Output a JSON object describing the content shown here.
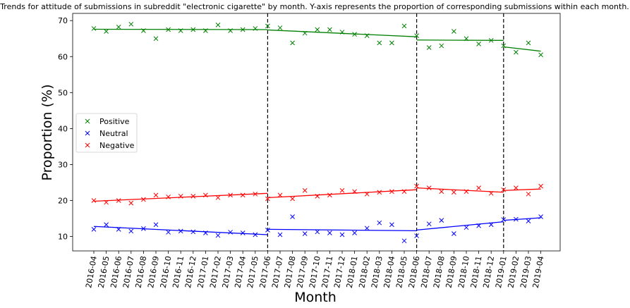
{
  "chart_data": {
    "type": "scatter",
    "title": "Trends for attitude of submissions in subreddit \"electronic cigarette\" by month. Y-axis represents the proportion of corresponding submissions within each month.",
    "xlabel": "Month",
    "ylabel": "Proportion (%)",
    "ylim": [
      6,
      72
    ],
    "yticks": [
      10,
      20,
      30,
      40,
      50,
      60,
      70
    ],
    "categories": [
      "2016-04",
      "2016-05",
      "2016-06",
      "2016-07",
      "2016-08",
      "2016-09",
      "2016-10",
      "2016-11",
      "2016-12",
      "2017-01",
      "2017-02",
      "2017-03",
      "2017-04",
      "2017-05",
      "2017-06",
      "2017-07",
      "2017-08",
      "2017-09",
      "2017-10",
      "2017-11",
      "2017-12",
      "2018-01",
      "2018-02",
      "2018-03",
      "2018-04",
      "2018-05",
      "2018-06",
      "2018-07",
      "2018-08",
      "2018-09",
      "2018-10",
      "2018-11",
      "2018-12",
      "2019-01",
      "2019-02",
      "2019-03",
      "2019-04"
    ],
    "legend_position": "center-left",
    "grid": false,
    "breakpoints": [
      "2017-06",
      "2018-06",
      "2019-01"
    ],
    "series": [
      {
        "name": "Positive",
        "color": "#008000",
        "values": [
          67.8,
          67.0,
          68.2,
          69.0,
          67.2,
          65.0,
          67.5,
          67.2,
          67.5,
          67.2,
          68.8,
          67.2,
          67.5,
          67.8,
          68.5,
          68.0,
          63.8,
          66.5,
          67.5,
          67.5,
          66.8,
          66.2,
          65.8,
          63.8,
          63.8,
          68.5,
          65.8,
          62.5,
          63.0,
          67.0,
          65.0,
          63.5,
          64.5,
          63.0,
          61.2,
          63.8,
          60.5
        ],
        "trend": [
          {
            "start": "2016-04",
            "end": "2017-06",
            "from": 67.6,
            "to": 67.5
          },
          {
            "start": "2017-06",
            "end": "2018-06",
            "from": 67.4,
            "to": 65.5
          },
          {
            "start": "2018-06",
            "end": "2019-01",
            "from": 64.6,
            "to": 64.5
          },
          {
            "start": "2019-01",
            "end": "2019-04",
            "from": 62.7,
            "to": 61.5
          }
        ]
      },
      {
        "name": "Neutral",
        "color": "#0000ff",
        "values": [
          12.0,
          13.3,
          12.0,
          11.5,
          12.2,
          13.3,
          11.2,
          11.5,
          11.3,
          11.0,
          10.3,
          11.2,
          11.0,
          10.5,
          11.8,
          10.5,
          15.5,
          10.8,
          11.3,
          11.0,
          10.5,
          11.0,
          12.3,
          13.8,
          13.3,
          8.8,
          10.2,
          13.5,
          14.5,
          10.8,
          12.5,
          13.0,
          13.3,
          14.7,
          14.8,
          14.3,
          15.5
        ],
        "trend": [
          {
            "start": "2016-04",
            "end": "2017-06",
            "from": 12.8,
            "to": 10.5
          },
          {
            "start": "2017-06",
            "end": "2018-06",
            "from": 12.0,
            "to": 11.6
          },
          {
            "start": "2018-06",
            "end": "2019-01",
            "from": 11.8,
            "to": 14.1
          },
          {
            "start": "2019-01",
            "end": "2019-04",
            "from": 14.5,
            "to": 15.2
          }
        ]
      },
      {
        "name": "Negative",
        "color": "#ff0000",
        "values": [
          20.0,
          19.5,
          20.0,
          19.3,
          20.3,
          21.5,
          21.0,
          21.2,
          21.2,
          21.5,
          20.8,
          21.5,
          21.5,
          21.8,
          20.5,
          21.5,
          20.5,
          22.8,
          21.2,
          21.5,
          22.8,
          22.5,
          21.8,
          22.3,
          22.5,
          22.5,
          24.0,
          23.5,
          22.5,
          22.3,
          22.5,
          23.5,
          22.0,
          23.0,
          23.5,
          21.8,
          24.0
        ],
        "trend": [
          {
            "start": "2016-04",
            "end": "2017-06",
            "from": 19.8,
            "to": 22.0
          },
          {
            "start": "2017-06",
            "end": "2018-06",
            "from": 20.8,
            "to": 23.0
          },
          {
            "start": "2018-06",
            "end": "2019-01",
            "from": 23.5,
            "to": 22.3
          },
          {
            "start": "2019-01",
            "end": "2019-04",
            "from": 22.8,
            "to": 23.2
          }
        ]
      }
    ]
  }
}
